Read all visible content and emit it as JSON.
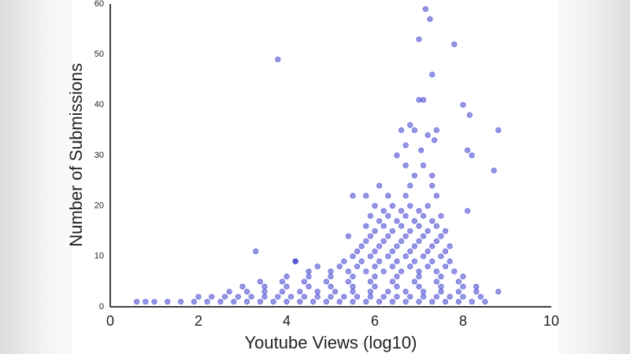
{
  "chart_data": {
    "type": "scatter",
    "xlabel": "Youtube Views (log10)",
    "ylabel": "Number of Submissions",
    "color": "#1414c8",
    "xlim": [
      0,
      10
    ],
    "ylim": [
      0,
      60
    ],
    "xticks": [
      0,
      2,
      4,
      6,
      8,
      10
    ],
    "yticks": [
      0,
      10,
      20,
      30,
      40,
      50,
      60
    ],
    "x": [
      3.8,
      7.15,
      7.25,
      7.0,
      7.8,
      7.3,
      7.0,
      7.1,
      8.0,
      8.15,
      6.8,
      6.9,
      7.4,
      8.8,
      6.6,
      7.2,
      7.35,
      6.7,
      7.05,
      8.1,
      8.2,
      6.5,
      8.7,
      3.3,
      4.2,
      5.5,
      5.8,
      0.6,
      0.8,
      1.0,
      1.3,
      1.6,
      1.9,
      2.2,
      2.5,
      2.8,
      3.1,
      3.4,
      3.7,
      4.0,
      4.3,
      4.6,
      4.9,
      5.2,
      5.5,
      5.8,
      6.1,
      6.4,
      6.7,
      7.0,
      7.3,
      7.6,
      7.9,
      8.2,
      8.5,
      2.0,
      2.3,
      2.6,
      2.9,
      3.2,
      3.5,
      3.8,
      4.1,
      4.4,
      4.7,
      5.0,
      5.3,
      5.6,
      5.9,
      6.2,
      6.5,
      6.8,
      7.1,
      7.4,
      7.7,
      8.0,
      8.4,
      2.7,
      3.1,
      3.5,
      3.9,
      4.3,
      4.7,
      5.1,
      5.5,
      5.9,
      6.3,
      6.7,
      7.1,
      7.5,
      7.9,
      8.3,
      8.8,
      3.0,
      3.5,
      4.0,
      4.5,
      5.0,
      5.5,
      6.0,
      6.5,
      7.0,
      7.5,
      8.0,
      8.3,
      3.4,
      3.9,
      4.4,
      4.9,
      5.4,
      5.9,
      6.4,
      6.9,
      7.4,
      7.9,
      4.0,
      4.5,
      5.0,
      5.5,
      6.0,
      6.5,
      7.0,
      7.5,
      8.0,
      4.5,
      5.0,
      5.4,
      5.8,
      6.2,
      6.6,
      7.0,
      7.4,
      7.8,
      4.7,
      5.2,
      5.6,
      6.0,
      6.4,
      6.8,
      7.2,
      7.6,
      4.2,
      5.3,
      5.7,
      6.1,
      6.5,
      6.9,
      7.3,
      7.7,
      5.5,
      5.9,
      6.3,
      6.7,
      7.1,
      7.5,
      5.6,
      6.0,
      6.4,
      6.8,
      7.2,
      7.6,
      5.7,
      6.1,
      6.5,
      6.9,
      7.3,
      7.7,
      5.8,
      6.2,
      6.6,
      7.0,
      7.4,
      5.4,
      5.9,
      6.3,
      6.7,
      7.1,
      7.5,
      6.0,
      6.4,
      6.8,
      7.2,
      7.6,
      5.8,
      6.2,
      6.6,
      7.0,
      7.4,
      6.1,
      6.5,
      6.9,
      7.3,
      5.9,
      6.3,
      6.7,
      7.1,
      7.5,
      6.2,
      6.6,
      7.0,
      8.1,
      6.0,
      6.4,
      6.8,
      7.2,
      6.3,
      6.7,
      7.4,
      6.1,
      6.8,
      7.3,
      6.9,
      7.3,
      6.7,
      7.1
    ],
    "y": [
      49,
      59,
      57,
      53,
      52,
      46,
      41,
      41,
      40,
      38,
      36,
      35,
      35,
      35,
      35,
      34,
      33,
      32,
      31,
      31,
      30,
      30,
      27,
      11,
      9,
      22,
      22,
      1,
      1,
      1,
      1,
      1,
      1,
      1,
      1,
      1,
      1,
      1,
      1,
      1,
      1,
      1,
      1,
      1,
      1,
      1,
      1,
      1,
      1,
      1,
      1,
      1,
      1,
      1,
      1,
      2,
      2,
      2,
      2,
      2,
      2,
      2,
      2,
      2,
      2,
      2,
      2,
      2,
      2,
      2,
      2,
      2,
      2,
      2,
      2,
      2,
      2,
      3,
      3,
      3,
      3,
      3,
      3,
      3,
      3,
      3,
      3,
      3,
      3,
      3,
      3,
      3,
      3,
      4,
      4,
      4,
      4,
      4,
      4,
      4,
      4,
      4,
      4,
      4,
      4,
      5,
      5,
      5,
      5,
      5,
      5,
      5,
      5,
      5,
      5,
      6,
      6,
      6,
      6,
      6,
      6,
      6,
      6,
      6,
      7,
      7,
      7,
      7,
      7,
      7,
      7,
      7,
      7,
      8,
      8,
      8,
      8,
      8,
      8,
      8,
      8,
      9,
      9,
      9,
      9,
      9,
      9,
      9,
      9,
      10,
      10,
      10,
      10,
      10,
      10,
      11,
      11,
      11,
      11,
      11,
      11,
      12,
      12,
      12,
      12,
      12,
      12,
      13,
      13,
      13,
      13,
      13,
      14,
      14,
      14,
      14,
      14,
      14,
      15,
      15,
      15,
      15,
      15,
      16,
      16,
      16,
      16,
      16,
      17,
      17,
      17,
      17,
      18,
      18,
      18,
      18,
      18,
      19,
      19,
      19,
      19,
      20,
      20,
      20,
      20,
      22,
      22,
      22,
      24,
      24,
      24,
      26,
      26,
      28,
      28
    ]
  }
}
